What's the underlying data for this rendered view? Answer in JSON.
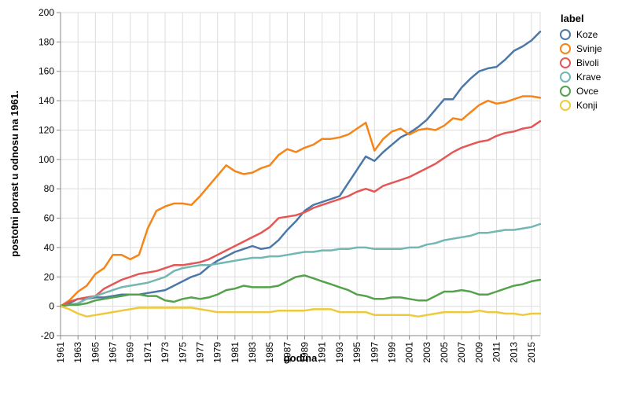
{
  "chart_data": {
    "type": "line",
    "xlabel": "godina",
    "ylabel": "postotni porast u odnosu na 1961.",
    "xlim": [
      1961,
      2016
    ],
    "ylim": [
      -20,
      200
    ],
    "x_ticks": [
      "1961",
      "1963",
      "1965",
      "1967",
      "1969",
      "1971",
      "1973",
      "1975",
      "1977",
      "1979",
      "1981",
      "1983",
      "1985",
      "1987",
      "1989",
      "1991",
      "1993",
      "1995",
      "1997",
      "1999",
      "2001",
      "2003",
      "2005",
      "2007",
      "2009",
      "2011",
      "2013",
      "2015"
    ],
    "y_ticks": [
      "-20",
      "0",
      "20",
      "40",
      "60",
      "80",
      "100",
      "120",
      "140",
      "160",
      "180",
      "200"
    ],
    "grid": true,
    "legend": {
      "title": "label",
      "position": "right"
    },
    "x": [
      1961,
      1962,
      1963,
      1964,
      1965,
      1966,
      1967,
      1968,
      1969,
      1970,
      1971,
      1972,
      1973,
      1974,
      1975,
      1976,
      1977,
      1978,
      1979,
      1980,
      1981,
      1982,
      1983,
      1984,
      1985,
      1986,
      1987,
      1988,
      1989,
      1990,
      1991,
      1992,
      1993,
      1994,
      1995,
      1996,
      1997,
      1998,
      1999,
      2000,
      2001,
      2002,
      2003,
      2004,
      2005,
      2006,
      2007,
      2008,
      2009,
      2010,
      2011,
      2012,
      2013,
      2014,
      2015,
      2016
    ],
    "series": [
      {
        "name": "Koze",
        "color": "#4c78a8",
        "values": [
          0,
          2,
          5,
          5,
          6,
          6,
          7,
          8,
          8,
          8,
          9,
          10,
          11,
          14,
          17,
          20,
          22,
          27,
          31,
          34,
          37,
          39,
          41,
          39,
          40,
          45,
          52,
          58,
          65,
          69,
          71,
          73,
          75,
          84,
          93,
          102,
          99,
          105,
          110,
          115,
          118,
          122,
          127,
          134,
          141,
          141,
          149,
          155,
          160,
          162,
          163,
          168,
          174,
          177,
          181,
          187
        ]
      },
      {
        "name": "Svinje",
        "color": "#f58518",
        "values": [
          0,
          4,
          10,
          14,
          22,
          26,
          35,
          35,
          32,
          35,
          53,
          65,
          68,
          70,
          70,
          69,
          75,
          82,
          89,
          96,
          92,
          90,
          91,
          94,
          96,
          103,
          107,
          105,
          108,
          110,
          114,
          114,
          115,
          117,
          121,
          125,
          106,
          114,
          119,
          121,
          117,
          120,
          121,
          120,
          123,
          128,
          127,
          132,
          137,
          140,
          138,
          139,
          141,
          143,
          143,
          142
        ]
      },
      {
        "name": "Bivoli",
        "color": "#e45756",
        "values": [
          0,
          3,
          5,
          6,
          7,
          12,
          15,
          18,
          20,
          22,
          23,
          24,
          26,
          28,
          28,
          29,
          30,
          32,
          35,
          38,
          41,
          44,
          47,
          50,
          54,
          60,
          61,
          62,
          64,
          67,
          69,
          71,
          73,
          75,
          78,
          80,
          78,
          82,
          84,
          86,
          88,
          91,
          94,
          97,
          101,
          105,
          108,
          110,
          112,
          113,
          116,
          118,
          119,
          121,
          122,
          126
        ]
      },
      {
        "name": "Krave",
        "color": "#72b7b2",
        "values": [
          0,
          1,
          2,
          5,
          7,
          9,
          11,
          13,
          14,
          15,
          16,
          18,
          20,
          24,
          26,
          27,
          28,
          28,
          29,
          30,
          31,
          32,
          33,
          33,
          34,
          34,
          35,
          36,
          37,
          37,
          38,
          38,
          39,
          39,
          40,
          40,
          39,
          39,
          39,
          39,
          40,
          40,
          42,
          43,
          45,
          46,
          47,
          48,
          50,
          50,
          51,
          52,
          52,
          53,
          54,
          56
        ]
      },
      {
        "name": "Ovce",
        "color": "#54a24b",
        "values": [
          0,
          1,
          1,
          2,
          4,
          5,
          6,
          7,
          8,
          8,
          7,
          7,
          4,
          3,
          5,
          6,
          5,
          6,
          8,
          11,
          12,
          14,
          13,
          13,
          13,
          14,
          17,
          20,
          21,
          19,
          17,
          15,
          13,
          11,
          8,
          7,
          5,
          5,
          6,
          6,
          5,
          4,
          4,
          7,
          10,
          10,
          11,
          10,
          8,
          8,
          10,
          12,
          14,
          15,
          17,
          18
        ]
      },
      {
        "name": "Konji",
        "color": "#eeca3b",
        "values": [
          0,
          -2,
          -5,
          -7,
          -6,
          -5,
          -4,
          -3,
          -2,
          -1,
          -1,
          -1,
          -1,
          -1,
          -1,
          -1,
          -2,
          -3,
          -4,
          -4,
          -4,
          -4,
          -4,
          -4,
          -4,
          -3,
          -3,
          -3,
          -3,
          -2,
          -2,
          -2,
          -4,
          -4,
          -4,
          -4,
          -6,
          -6,
          -6,
          -6,
          -6,
          -7,
          -6,
          -5,
          -4,
          -4,
          -4,
          -4,
          -3,
          -4,
          -4,
          -5,
          -5,
          -6,
          -5,
          -5
        ]
      }
    ]
  }
}
